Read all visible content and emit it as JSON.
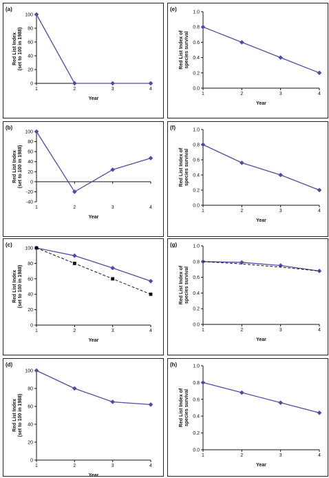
{
  "chart_data": [
    {
      "panel": "(a)",
      "type": "line",
      "x": [
        1,
        2,
        3,
        4
      ],
      "series": [
        {
          "values": [
            100,
            0,
            0,
            0
          ],
          "color": "#4b4ba8",
          "style": "solid",
          "marker": "diamond"
        }
      ],
      "xlabel": "Year",
      "ylabel": "Red List Index (set to 100 in 1988)",
      "ylim": [
        0,
        100
      ],
      "yticks": [
        0,
        20,
        40,
        60,
        80,
        100
      ],
      "xticks": [
        1,
        2,
        3,
        4
      ],
      "grid": false
    },
    {
      "panel": "(b)",
      "type": "line",
      "x": [
        1,
        2,
        3,
        4
      ],
      "series": [
        {
          "values": [
            100,
            -20,
            24,
            47
          ],
          "color": "#4b4ba8",
          "style": "solid",
          "marker": "diamond"
        }
      ],
      "xlabel": "Year",
      "ylabel": "Red List Index (set to 100 in 1988)",
      "ylim": [
        -40,
        100
      ],
      "yticks": [
        -40,
        -20,
        0,
        20,
        40,
        60,
        80,
        100
      ],
      "xticks": [
        1,
        2,
        3,
        4
      ],
      "grid": false
    },
    {
      "panel": "(c)",
      "type": "line",
      "x": [
        1,
        2,
        3,
        4
      ],
      "series": [
        {
          "values": [
            100,
            90,
            74,
            57
          ],
          "color": "#4b4ba8",
          "style": "solid",
          "marker": "diamond"
        },
        {
          "values": [
            100,
            80,
            60,
            40
          ],
          "color": "#111111",
          "style": "dashed",
          "marker": "square"
        }
      ],
      "xlabel": "Year",
      "ylabel": "Red List Index (set to 100 in 1988)",
      "ylim": [
        0,
        100
      ],
      "yticks": [
        0,
        20,
        40,
        60,
        80,
        100
      ],
      "xticks": [
        1,
        2,
        3,
        4
      ],
      "grid": false
    },
    {
      "panel": "(d)",
      "type": "line",
      "x": [
        1,
        2,
        3,
        4
      ],
      "series": [
        {
          "values": [
            100,
            80,
            65,
            62
          ],
          "color": "#4b4ba8",
          "style": "solid",
          "marker": "diamond"
        }
      ],
      "xlabel": "Year",
      "ylabel": "Red List Index (set to 100 in 1988)",
      "ylim": [
        0,
        100
      ],
      "yticks": [
        0,
        20,
        40,
        60,
        80,
        100
      ],
      "xticks": [
        1,
        2,
        3,
        4
      ],
      "grid": false
    },
    {
      "panel": "(e)",
      "type": "line",
      "x": [
        1,
        2,
        3,
        4
      ],
      "series": [
        {
          "values": [
            0.8,
            0.6,
            0.4,
            0.2
          ],
          "color": "#4b4ba8",
          "style": "solid",
          "marker": "diamond"
        }
      ],
      "xlabel": "Year",
      "ylabel": "Red List Index of species survival",
      "ylim": [
        0,
        1
      ],
      "yticks": [
        "0.0",
        "0.2",
        "0.4",
        "0.6",
        "0.8",
        "1.0"
      ],
      "xticks": [
        1,
        2,
        3,
        4
      ],
      "grid": false
    },
    {
      "panel": "(f)",
      "type": "line",
      "x": [
        1,
        2,
        3,
        4
      ],
      "series": [
        {
          "values": [
            0.8,
            0.56,
            0.4,
            0.2
          ],
          "color": "#4b4ba8",
          "style": "solid",
          "marker": "diamond"
        }
      ],
      "xlabel": "Year",
      "ylabel": "Red List Index of species survival",
      "ylim": [
        0,
        1
      ],
      "yticks": [
        "0.0",
        "0.2",
        "0.4",
        "0.6",
        "0.8",
        "1.0"
      ],
      "xticks": [
        1,
        2,
        3,
        4
      ],
      "grid": false
    },
    {
      "panel": "(g)",
      "type": "line",
      "x": [
        1,
        2,
        3,
        4
      ],
      "series": [
        {
          "values": [
            0.8,
            0.79,
            0.75,
            0.68
          ],
          "color": "#4b4ba8",
          "style": "solid",
          "marker": "diamond"
        },
        {
          "values": [
            0.8,
            0.77,
            0.73,
            0.68
          ],
          "color": "#111111",
          "style": "dashed",
          "marker": "none"
        }
      ],
      "xlabel": "Year",
      "ylabel": "Red List Index of species survival",
      "ylim": [
        0,
        1
      ],
      "yticks": [
        "0.0",
        "0.2",
        "0.4",
        "0.6",
        "0.8",
        "1.0"
      ],
      "xticks": [
        1,
        2,
        3,
        4
      ],
      "grid": false
    },
    {
      "panel": "(h)",
      "type": "line",
      "x": [
        1,
        2,
        3,
        4
      ],
      "series": [
        {
          "values": [
            0.8,
            0.68,
            0.56,
            0.44
          ],
          "color": "#4b4ba8",
          "style": "solid",
          "marker": "diamond"
        }
      ],
      "xlabel": "Year",
      "ylabel": "Red List Index of species survival",
      "ylim": [
        0,
        1
      ],
      "yticks": [
        "0.0",
        "0.2",
        "0.4",
        "0.6",
        "0.8",
        "1.0"
      ],
      "xticks": [
        1,
        2,
        3,
        4
      ],
      "grid": false
    }
  ]
}
